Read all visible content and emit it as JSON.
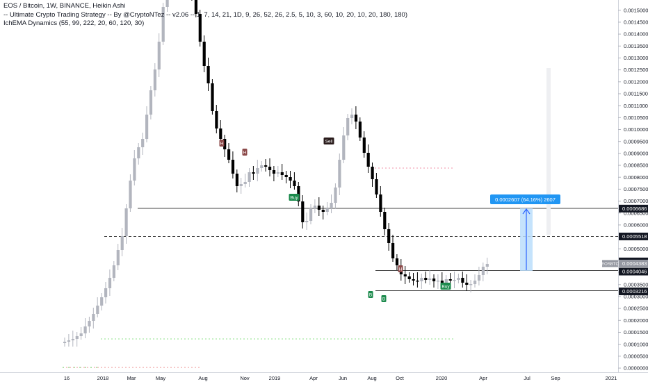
{
  "legend": {
    "title": "EOS / Bitcoin, 1W, BINANCE, Heikin Ashi",
    "indicator1": "-- Ultimate Crypto Trading Strategy -- By @CryptoNTez -- v2.06 -- 1, 7, 14, 21, 1D, 9, 26, 52, 26, 2.5, 5, 10, 3, 60, 10, 20, 10, 20, 180, 180)",
    "indicator2": "IchEMA Dynamics (55, 99, 222, 20, 60, 120, 30)"
  },
  "y_axis": {
    "ticks": [
      "0.0015000",
      "0.0014500",
      "0.0014000",
      "0.0013500",
      "0.0013000",
      "0.0012500",
      "0.0012000",
      "0.0011500",
      "0.0011000",
      "0.0010500",
      "0.0010000",
      "0.0009500",
      "0.0009000",
      "0.0008500",
      "0.0008000",
      "0.0007500",
      "0.0007000",
      "0.0006500",
      "0.0006000",
      "0.0005500",
      "0.0005000",
      "0.0004500",
      "0.0004000",
      "0.0003500",
      "0.0003000",
      "0.0002500",
      "0.0002000",
      "0.0001500",
      "0.0001000",
      "0.0000500",
      "0.0000000"
    ],
    "price_labels": [
      {
        "text": "0.0006686",
        "value": 0.0006686,
        "style": "dark"
      },
      {
        "text": "0.0005518",
        "value": 0.0005518,
        "style": "dark"
      },
      {
        "text": "0.0004472",
        "value": 0.0004472,
        "style": "dark"
      },
      {
        "text": "0.0004383",
        "value": 0.0004383,
        "style": "gray",
        "tag": "EOSBTC"
      },
      {
        "text": "0.0004046",
        "value": 0.0004046,
        "style": "dark"
      },
      {
        "text": "0.0003216",
        "value": 0.0003216,
        "style": "dark"
      }
    ]
  },
  "x_axis": {
    "labels": [
      "16",
      "2018",
      "Mar",
      "May",
      "Aug",
      "Nov",
      "2019",
      "Apr",
      "Jun",
      "Aug",
      "Oct",
      "2020",
      "Apr",
      "Jul",
      "Sep",
      "2021"
    ]
  },
  "annotations": {
    "measure_label": "0.0002607 (64.16%) 2607",
    "signals": [
      {
        "text": "Buy",
        "kind": "buy"
      },
      {
        "text": "Buy",
        "kind": "buy"
      },
      {
        "text": "Sell",
        "kind": "sell"
      },
      {
        "text": "H",
        "kind": "h"
      },
      {
        "text": "H",
        "kind": "h"
      },
      {
        "text": "H",
        "kind": "h"
      },
      {
        "text": "B",
        "kind": "b"
      },
      {
        "text": "B",
        "kind": "b"
      }
    ]
  },
  "colors": {
    "bull": "#b2b5be",
    "bear": "#000000",
    "buy": "#1b8a4c",
    "sell": "#2a1c1c",
    "h": "#8c4a4a",
    "measure": "#2962ff",
    "measure_fill": "#bbdefb"
  }
}
